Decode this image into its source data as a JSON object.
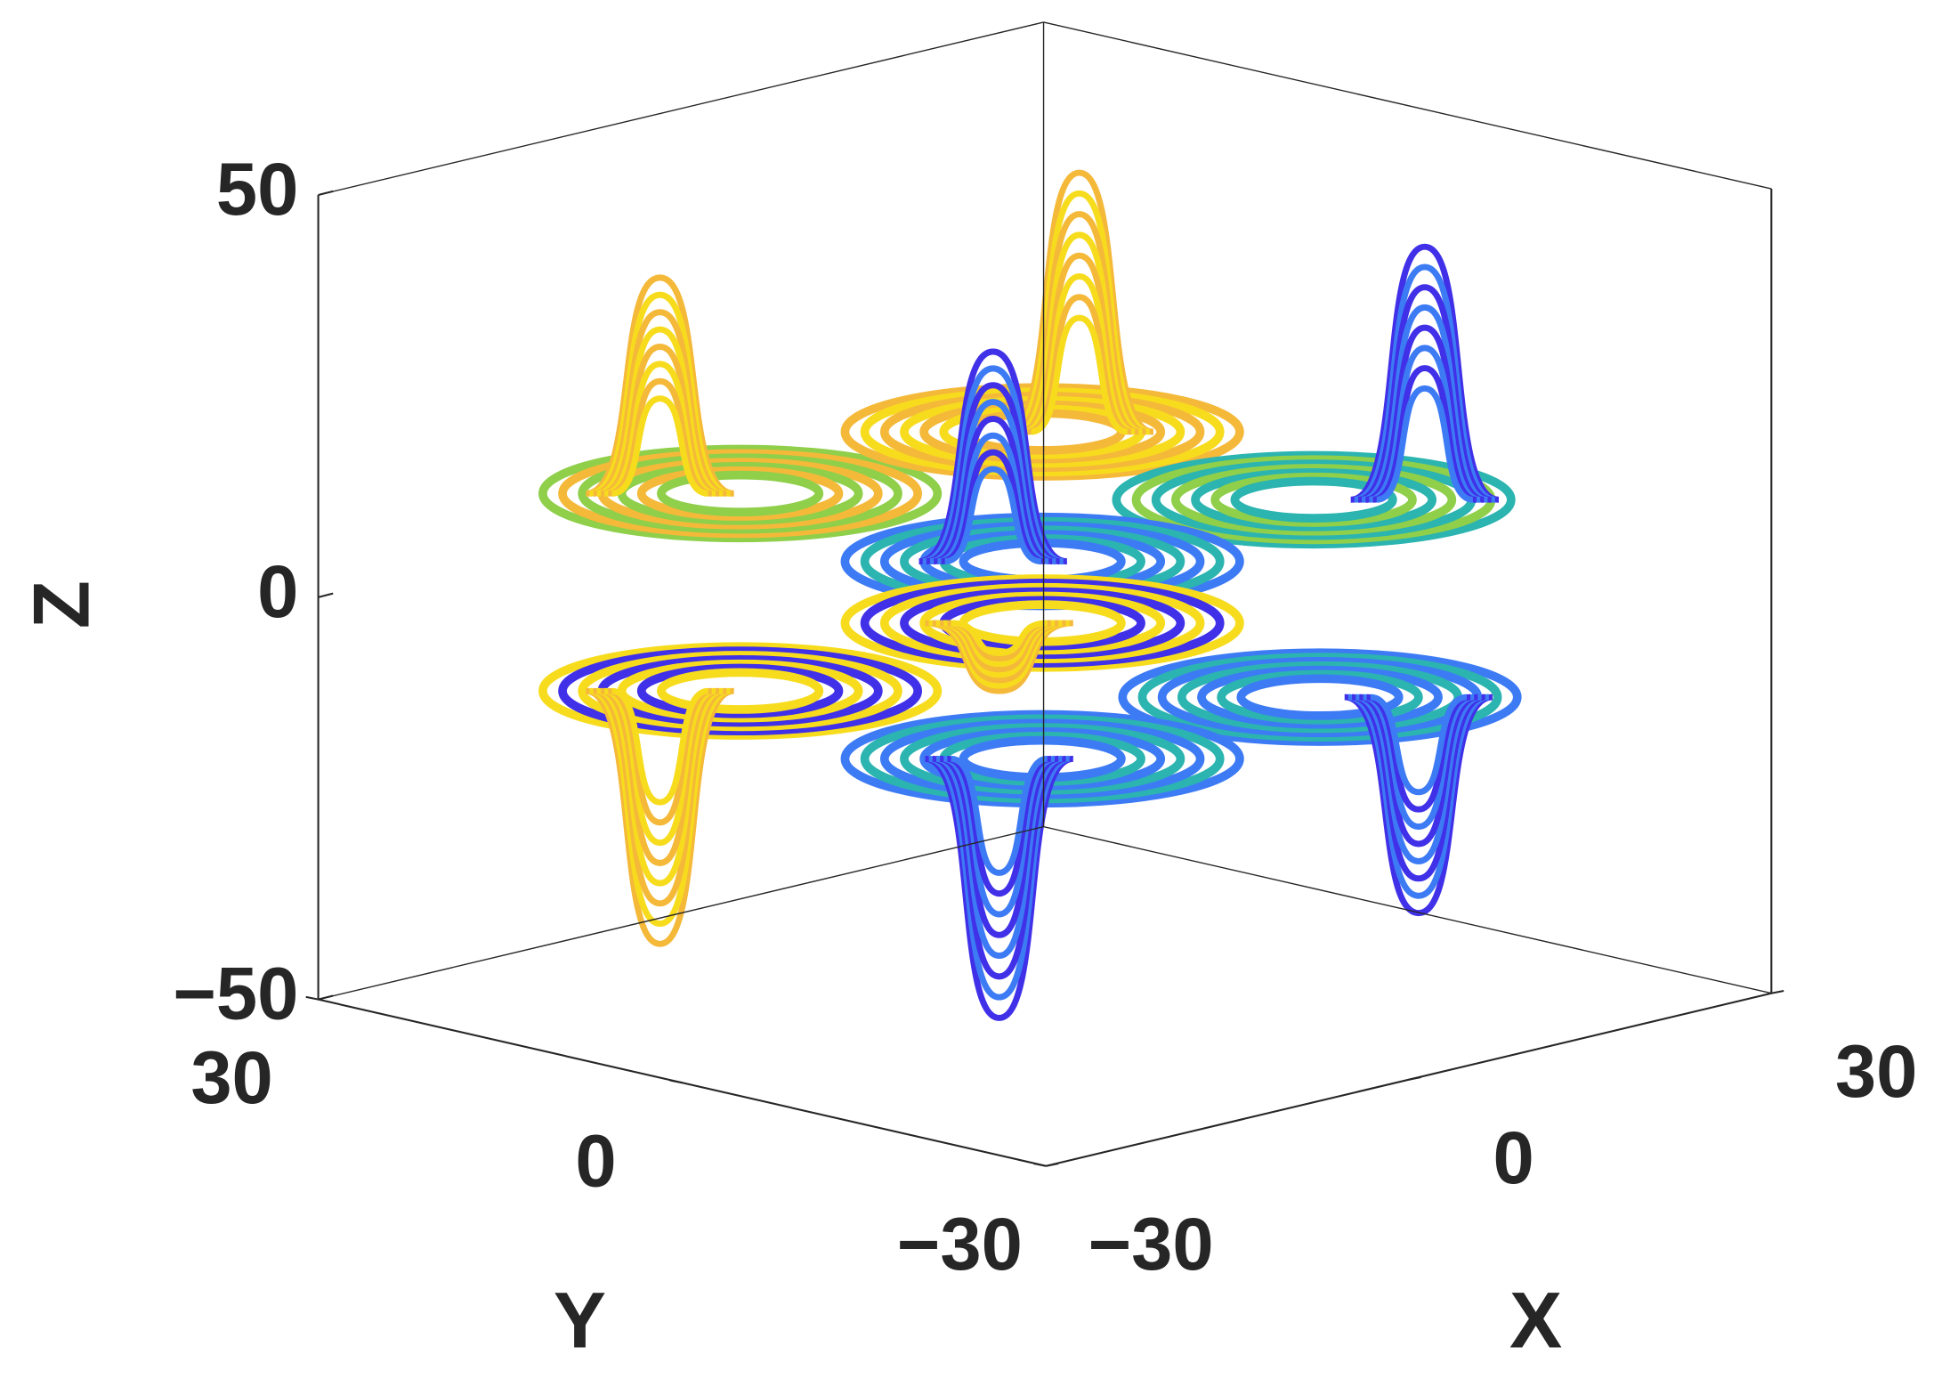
{
  "chart_data": {
    "type": "line3d",
    "xlabel": "X",
    "ylabel": "Y",
    "zlabel": "Z",
    "xlim": [
      -30,
      30
    ],
    "ylim": [
      -30,
      30
    ],
    "zlim": [
      -50,
      50
    ],
    "xticks": [
      {
        "value": -30,
        "label": "−30"
      },
      0,
      30
    ],
    "yticks": [
      {
        "value": -30,
        "label": "−30"
      },
      0,
      30
    ],
    "zticks": [
      {
        "value": -50,
        "label": "−50"
      },
      0,
      50
    ],
    "colormap": [
      "#4030e8",
      "#3d7bf5",
      "#2bb4b0",
      "#8fcf4a",
      "#f5b93a",
      "#f7dc1e"
    ]
  }
}
